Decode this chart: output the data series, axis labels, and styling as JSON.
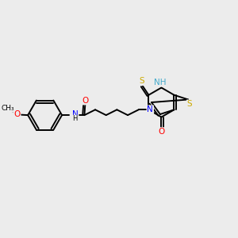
{
  "background_color": "#ececec",
  "bond_color": "#000000",
  "atom_colors": {
    "O": "#ff0000",
    "N": "#0000ff",
    "S": "#ccaa00",
    "NH_ring": "#44aacc",
    "NH_amide": "#0000ff"
  },
  "figsize": [
    3.0,
    3.0
  ],
  "dpi": 100,
  "lw": 1.4,
  "fontsize": 7.5
}
